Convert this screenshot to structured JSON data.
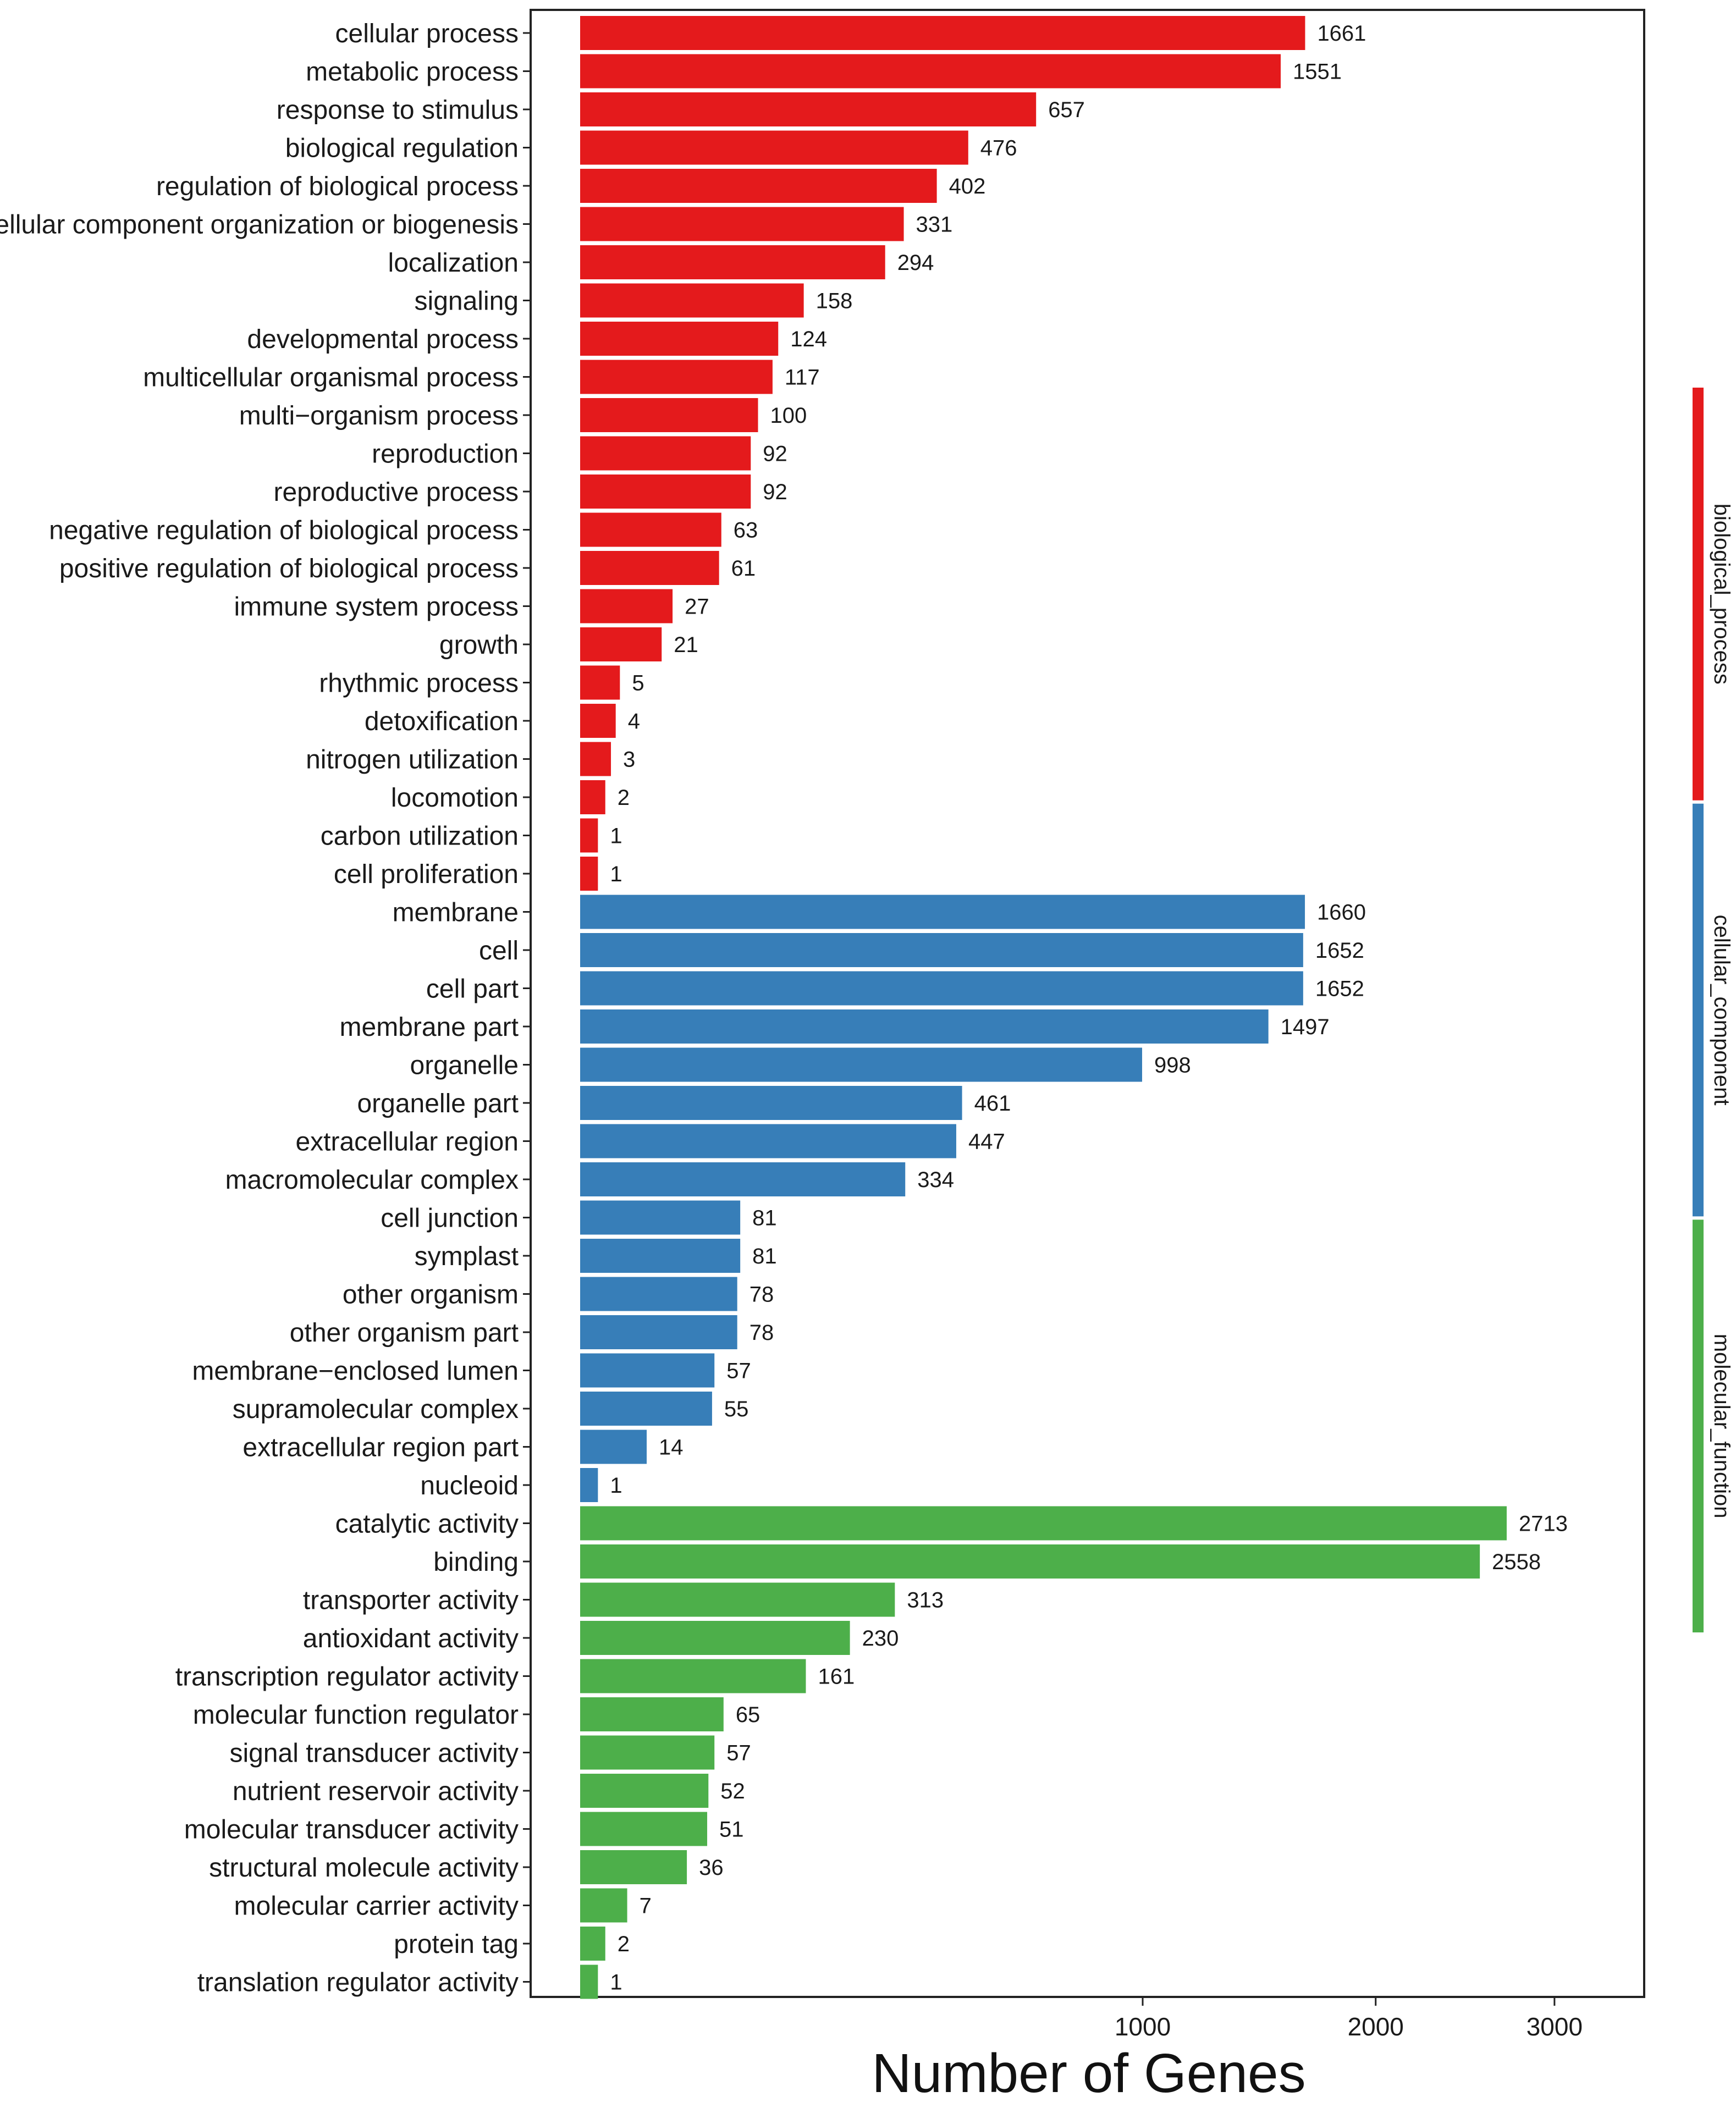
{
  "chart_data": {
    "type": "bar",
    "orientation": "horizontal",
    "scale": "sqrt",
    "xlabel": "Number of Genes",
    "x_ticks": [
      1000,
      2000,
      3000
    ],
    "x_tick_labels": [
      "1000",
      "2000",
      "3000"
    ],
    "xlim": [
      0,
      3850
    ],
    "groups": [
      {
        "name": "biological_process",
        "color": "#e41a1c"
      },
      {
        "name": "cellular_component",
        "color": "#377eb8"
      },
      {
        "name": "molecular_function",
        "color": "#4daf4a"
      }
    ],
    "bars": [
      {
        "label": "cellular process",
        "value": 1661,
        "value_label": "1661",
        "group": "biological_process"
      },
      {
        "label": "metabolic process",
        "value": 1551,
        "value_label": "1551",
        "group": "biological_process"
      },
      {
        "label": "response to stimulus",
        "value": 657,
        "value_label": "657",
        "group": "biological_process"
      },
      {
        "label": "biological regulation",
        "value": 476,
        "value_label": "476",
        "group": "biological_process"
      },
      {
        "label": "regulation of biological process",
        "value": 402,
        "value_label": "402",
        "group": "biological_process"
      },
      {
        "label": "cellular component organization or biogenesis",
        "value": 331,
        "value_label": "331",
        "group": "biological_process"
      },
      {
        "label": "localization",
        "value": 294,
        "value_label": "294",
        "group": "biological_process"
      },
      {
        "label": "signaling",
        "value": 158,
        "value_label": "158",
        "group": "biological_process"
      },
      {
        "label": "developmental process",
        "value": 124,
        "value_label": "124",
        "group": "biological_process"
      },
      {
        "label": "multicellular organismal process",
        "value": 117,
        "value_label": "117",
        "group": "biological_process"
      },
      {
        "label": "multi−organism process",
        "value": 100,
        "value_label": "100",
        "group": "biological_process"
      },
      {
        "label": "reproduction",
        "value": 92,
        "value_label": "92",
        "group": "biological_process"
      },
      {
        "label": "reproductive process",
        "value": 92,
        "value_label": "92",
        "group": "biological_process"
      },
      {
        "label": "negative regulation of biological process",
        "value": 63,
        "value_label": "63",
        "group": "biological_process"
      },
      {
        "label": "positive regulation of biological process",
        "value": 61,
        "value_label": "61",
        "group": "biological_process"
      },
      {
        "label": "immune system process",
        "value": 27,
        "value_label": "27",
        "group": "biological_process"
      },
      {
        "label": "growth",
        "value": 21,
        "value_label": "21",
        "group": "biological_process"
      },
      {
        "label": "rhythmic process",
        "value": 5,
        "value_label": "5",
        "group": "biological_process"
      },
      {
        "label": "detoxification",
        "value": 4,
        "value_label": "4",
        "group": "biological_process"
      },
      {
        "label": "nitrogen utilization",
        "value": 3,
        "value_label": "3",
        "group": "biological_process"
      },
      {
        "label": "locomotion",
        "value": 2,
        "value_label": "2",
        "group": "biological_process"
      },
      {
        "label": "carbon utilization",
        "value": 1,
        "value_label": "1",
        "group": "biological_process"
      },
      {
        "label": "cell proliferation",
        "value": 1,
        "value_label": "1",
        "group": "biological_process"
      },
      {
        "label": "membrane",
        "value": 1660,
        "value_label": "1660",
        "group": "cellular_component"
      },
      {
        "label": "cell",
        "value": 1652,
        "value_label": "1652",
        "group": "cellular_component"
      },
      {
        "label": "cell part",
        "value": 1652,
        "value_label": "1652",
        "group": "cellular_component"
      },
      {
        "label": "membrane part",
        "value": 1497,
        "value_label": "1497",
        "group": "cellular_component"
      },
      {
        "label": "organelle",
        "value": 998,
        "value_label": "998",
        "group": "cellular_component"
      },
      {
        "label": "organelle part",
        "value": 461,
        "value_label": "461",
        "group": "cellular_component"
      },
      {
        "label": "extracellular region",
        "value": 447,
        "value_label": "447",
        "group": "cellular_component"
      },
      {
        "label": "macromolecular complex",
        "value": 334,
        "value_label": "334",
        "group": "cellular_component"
      },
      {
        "label": "cell junction",
        "value": 81,
        "value_label": "81",
        "group": "cellular_component"
      },
      {
        "label": "symplast",
        "value": 81,
        "value_label": "81",
        "group": "cellular_component"
      },
      {
        "label": "other organism",
        "value": 78,
        "value_label": "78",
        "group": "cellular_component"
      },
      {
        "label": "other organism part",
        "value": 78,
        "value_label": "78",
        "group": "cellular_component"
      },
      {
        "label": "membrane−enclosed lumen",
        "value": 57,
        "value_label": "57",
        "group": "cellular_component"
      },
      {
        "label": "supramolecular complex",
        "value": 55,
        "value_label": "55",
        "group": "cellular_component"
      },
      {
        "label": "extracellular region part",
        "value": 14,
        "value_label": "14",
        "group": "cellular_component"
      },
      {
        "label": "nucleoid",
        "value": 1,
        "value_label": "1",
        "group": "cellular_component"
      },
      {
        "label": "catalytic activity",
        "value": 2713,
        "value_label": "2713",
        "group": "molecular_function"
      },
      {
        "label": "binding",
        "value": 2558,
        "value_label": "2558",
        "group": "molecular_function"
      },
      {
        "label": "transporter activity",
        "value": 313,
        "value_label": "313",
        "group": "molecular_function"
      },
      {
        "label": "antioxidant activity",
        "value": 230,
        "value_label": "230",
        "group": "molecular_function"
      },
      {
        "label": "transcription regulator activity",
        "value": 161,
        "value_label": "161",
        "group": "molecular_function"
      },
      {
        "label": "molecular function regulator",
        "value": 65,
        "value_label": "65",
        "group": "molecular_function"
      },
      {
        "label": "signal transducer activity",
        "value": 57,
        "value_label": "57",
        "group": "molecular_function"
      },
      {
        "label": "nutrient reservoir activity",
        "value": 52,
        "value_label": "52",
        "group": "molecular_function"
      },
      {
        "label": "molecular transducer activity",
        "value": 51,
        "value_label": "51",
        "group": "molecular_function"
      },
      {
        "label": "structural molecule activity",
        "value": 36,
        "value_label": "36",
        "group": "molecular_function"
      },
      {
        "label": "molecular carrier activity",
        "value": 7,
        "value_label": "7",
        "group": "molecular_function"
      },
      {
        "label": "protein tag",
        "value": 2,
        "value_label": "2",
        "group": "molecular_function"
      },
      {
        "label": "translation regulator activity",
        "value": 1,
        "value_label": "1",
        "group": "molecular_function"
      }
    ]
  }
}
